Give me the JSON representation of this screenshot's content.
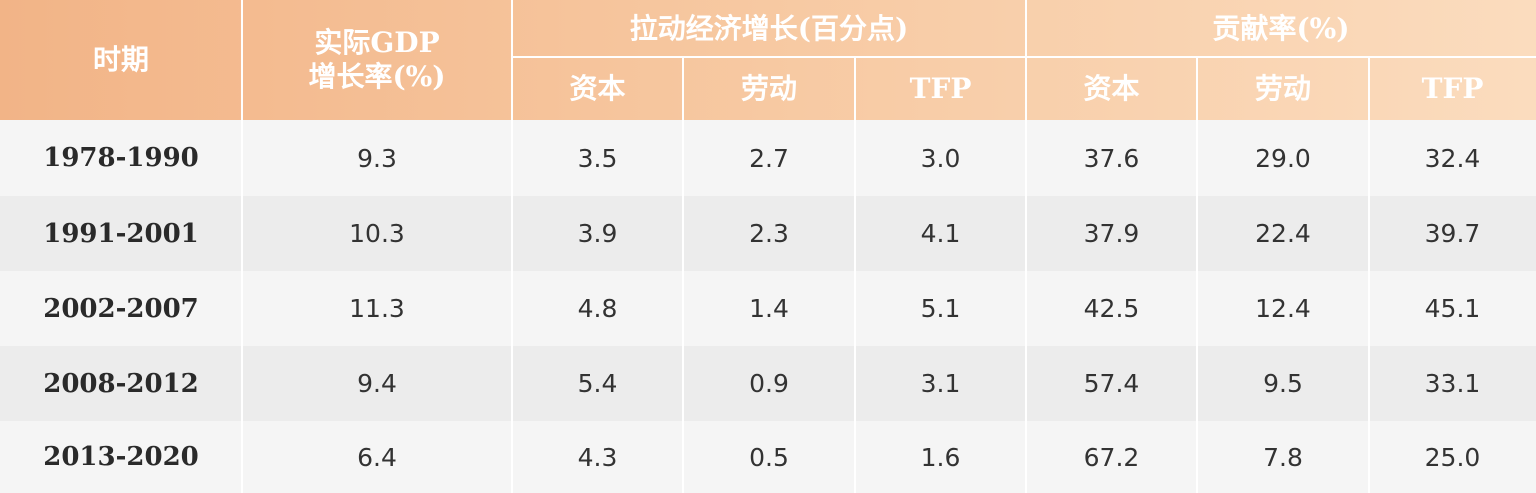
{
  "table": {
    "header": {
      "period": "时期",
      "gdp": [
        "实际GDP",
        "增长率(%)"
      ],
      "groups": [
        "拉动经济增长(百分点)",
        "贡献率(%)"
      ],
      "subheaders": [
        "资本",
        "劳动",
        "TFP",
        "资本",
        "劳动",
        "TFP"
      ]
    },
    "rows": [
      [
        "1978-1990",
        "9.3",
        "3.5",
        "2.7",
        "3.0",
        "37.6",
        "29.0",
        "32.4"
      ],
      [
        "1991-2001",
        "10.3",
        "3.9",
        "2.3",
        "4.1",
        "37.9",
        "22.4",
        "39.7"
      ],
      [
        "2002-2007",
        "11.3",
        "4.8",
        "1.4",
        "5.1",
        "42.5",
        "12.4",
        "45.1"
      ],
      [
        "2008-2012",
        "9.4",
        "5.4",
        "0.9",
        "3.1",
        "57.4",
        "9.5",
        "33.1"
      ],
      [
        "2013-2020",
        "6.4",
        "4.3",
        "0.5",
        "1.6",
        "67.2",
        "7.8",
        "25.0"
      ]
    ]
  }
}
